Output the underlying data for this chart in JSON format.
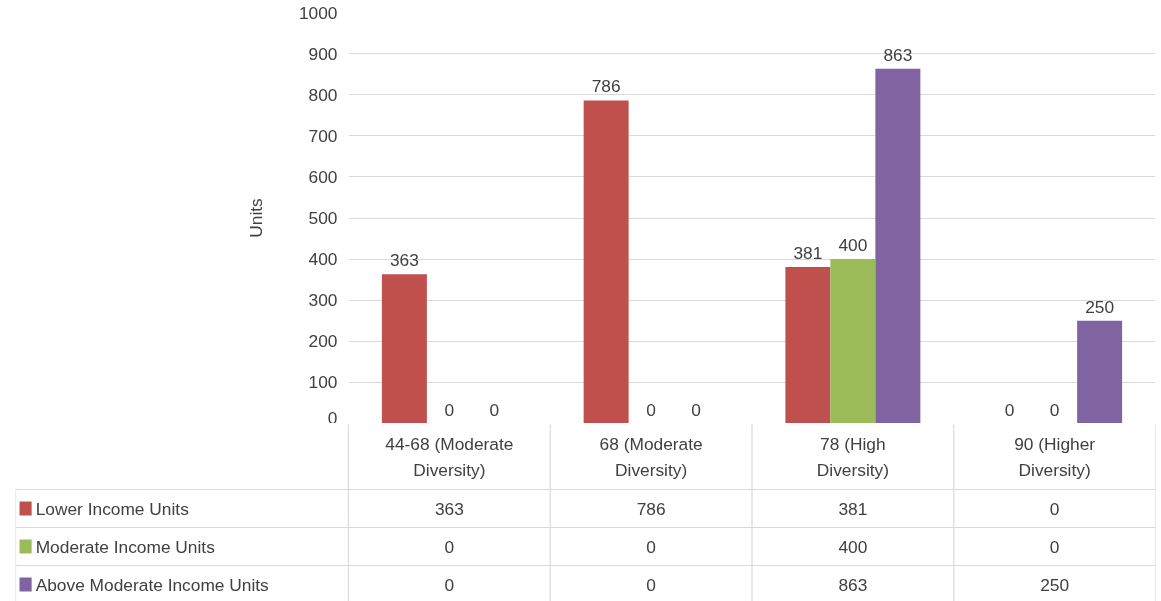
{
  "chart_data": {
    "type": "bar",
    "ylabel": "Units",
    "categories": [
      "44-68 (Moderate Diversity)",
      "68 (Moderate Diversity)",
      "78 (High Diversity)",
      "90 (Higher Diversity)"
    ],
    "series": [
      {
        "name": "Lower Income Units",
        "color": "#c0504d",
        "values": [
          363,
          786,
          381,
          0
        ],
        "value_labels": [
          "363",
          "786",
          "381",
          "0"
        ]
      },
      {
        "name": "Moderate Income Units",
        "color": "#9bbb59",
        "values": [
          0,
          0,
          400,
          0
        ],
        "value_labels": [
          "0",
          "0",
          "400",
          "0"
        ]
      },
      {
        "name": "Above Moderate Income Units",
        "color": "#8064a2",
        "values": [
          0,
          0,
          863,
          250
        ],
        "value_labels": [
          "0",
          "0",
          "863",
          "250"
        ]
      }
    ],
    "ylim": [
      0,
      1000
    ],
    "yticks": [
      0,
      100,
      200,
      300,
      400,
      500,
      600,
      700,
      800,
      900,
      1000
    ],
    "grid": "y",
    "data_labels": true,
    "legend": "bottom"
  }
}
